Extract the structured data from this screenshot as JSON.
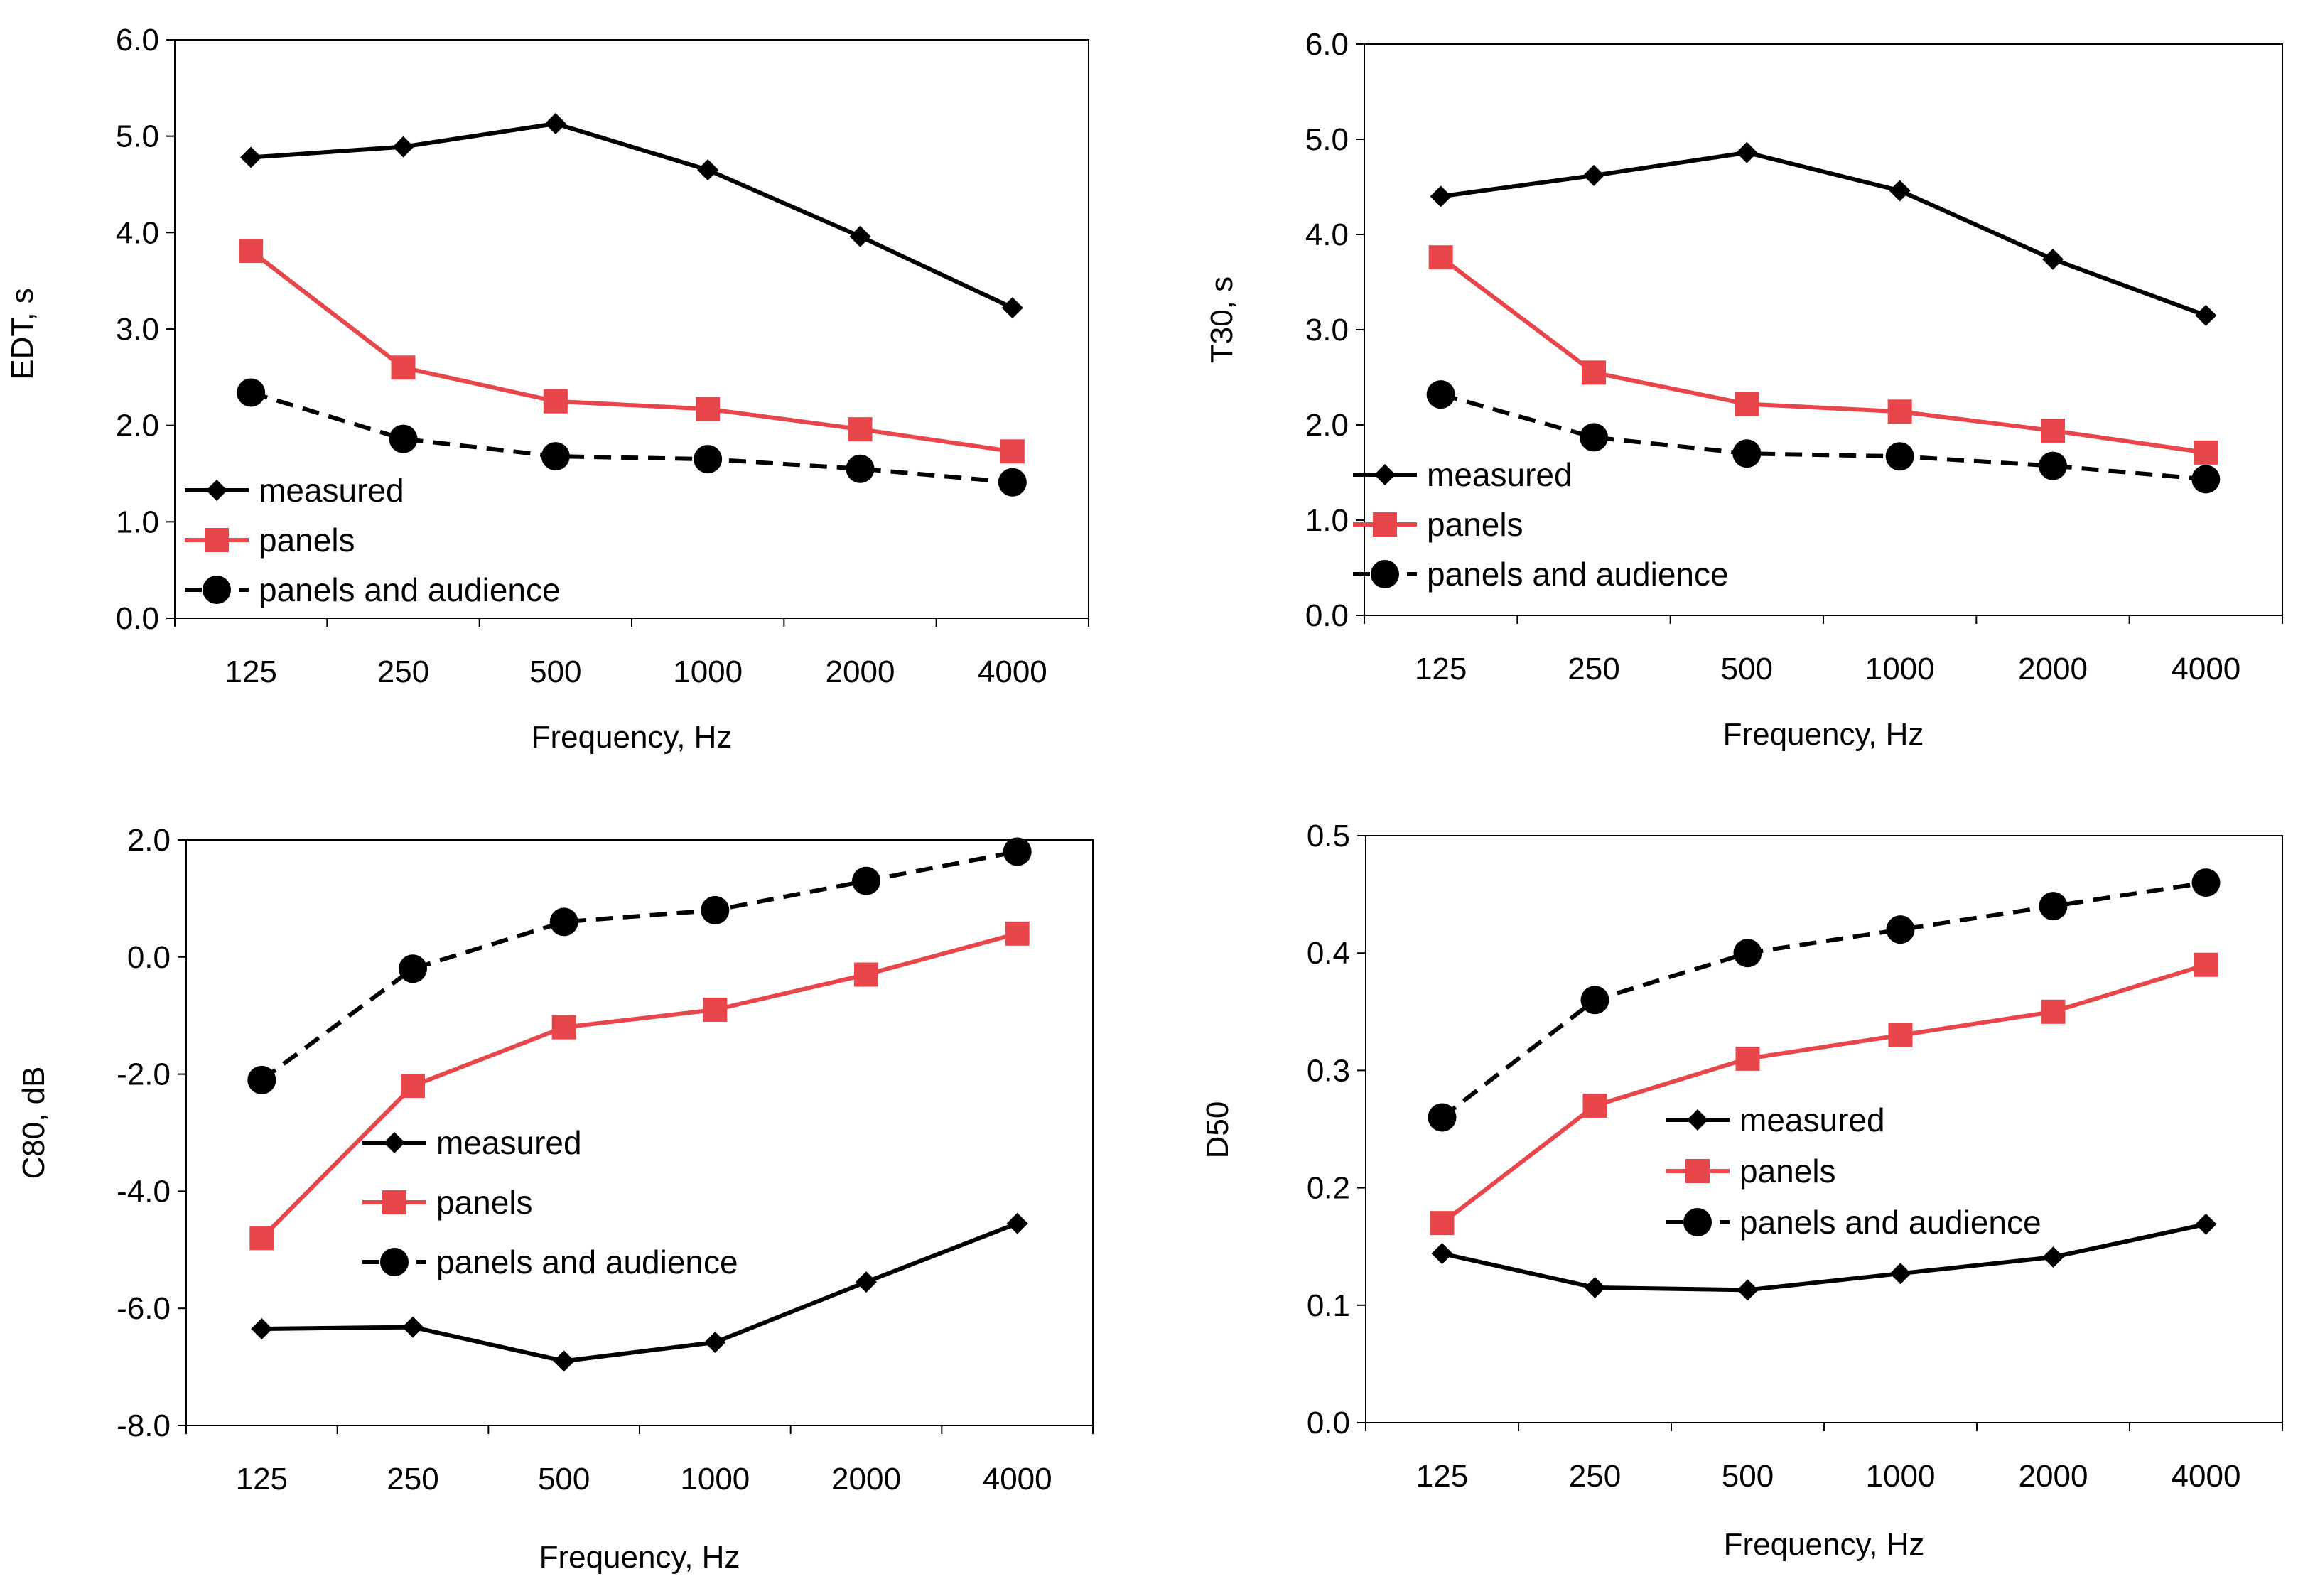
{
  "colors": {
    "measured": "#000000",
    "panels": "#e8464b",
    "panels_and_audience": "#000000",
    "frame": "#000000",
    "background": "#ffffff"
  },
  "chart_data": [
    {
      "type": "line",
      "id": "edt",
      "title": "",
      "xlabel": "Frequency, Hz",
      "ylabel": "EDT, s",
      "categories": [
        "125",
        "250",
        "500",
        "1000",
        "2000",
        "4000"
      ],
      "ylim": [
        0,
        6
      ],
      "yticks": [
        "0.0",
        "1.0",
        "2.0",
        "3.0",
        "4.0",
        "5.0",
        "6.0"
      ],
      "legend_position": "bottom-left",
      "series": [
        {
          "name": "measured",
          "marker": "diamond",
          "dash": "solid",
          "values": [
            4.78,
            4.89,
            5.13,
            4.65,
            3.96,
            3.22
          ]
        },
        {
          "name": "panels",
          "marker": "square",
          "dash": "solid",
          "values": [
            3.81,
            2.6,
            2.25,
            2.17,
            1.96,
            1.73
          ]
        },
        {
          "name": "panels and audience",
          "marker": "circle",
          "dash": "dashed",
          "values": [
            2.34,
            1.86,
            1.68,
            1.65,
            1.55,
            1.41
          ]
        }
      ]
    },
    {
      "type": "line",
      "id": "t30",
      "title": "",
      "xlabel": "Frequency, Hz",
      "ylabel": "T30, s",
      "categories": [
        "125",
        "250",
        "500",
        "1000",
        "2000",
        "4000"
      ],
      "ylim": [
        0,
        6
      ],
      "yticks": [
        "0.0",
        "1.0",
        "2.0",
        "3.0",
        "4.0",
        "5.0",
        "6.0"
      ],
      "legend_position": "bottom-left",
      "series": [
        {
          "name": "measured",
          "marker": "diamond",
          "dash": "solid",
          "values": [
            4.4,
            4.62,
            4.86,
            4.46,
            3.74,
            3.15
          ]
        },
        {
          "name": "panels",
          "marker": "square",
          "dash": "solid",
          "values": [
            3.76,
            2.55,
            2.22,
            2.14,
            1.94,
            1.71
          ]
        },
        {
          "name": "panels and audience",
          "marker": "circle",
          "dash": "dashed",
          "values": [
            2.32,
            1.87,
            1.7,
            1.67,
            1.57,
            1.43
          ]
        }
      ]
    },
    {
      "type": "line",
      "id": "c80",
      "title": "",
      "xlabel": "Frequency, Hz",
      "ylabel": "C80, dB",
      "categories": [
        "125",
        "250",
        "500",
        "1000",
        "2000",
        "4000"
      ],
      "ylim": [
        -8,
        2
      ],
      "yticks": [
        "-8.0",
        "-6.0",
        "-4.0",
        "-2.0",
        "0.0",
        "2.0"
      ],
      "legend_position": "center-right",
      "series": [
        {
          "name": "measured",
          "marker": "diamond",
          "dash": "solid",
          "values": [
            -6.35,
            -6.32,
            -6.9,
            -6.58,
            -5.55,
            -4.55
          ]
        },
        {
          "name": "panels",
          "marker": "square",
          "dash": "solid",
          "values": [
            -4.8,
            -2.2,
            -1.2,
            -0.9,
            -0.3,
            0.4
          ]
        },
        {
          "name": "panels and audience",
          "marker": "circle",
          "dash": "dashed",
          "values": [
            -2.1,
            -0.2,
            0.6,
            0.8,
            1.3,
            1.8
          ]
        }
      ]
    },
    {
      "type": "line",
      "id": "d50",
      "title": "",
      "xlabel": "Frequency, Hz",
      "ylabel": "D50",
      "categories": [
        "125",
        "250",
        "500",
        "1000",
        "2000",
        "4000"
      ],
      "ylim": [
        0,
        0.5
      ],
      "yticks": [
        "0.0",
        "0.1",
        "0.2",
        "0.3",
        "0.4",
        "0.5"
      ],
      "legend_position": "center-right",
      "series": [
        {
          "name": "measured",
          "marker": "diamond",
          "dash": "solid",
          "values": [
            0.144,
            0.115,
            0.113,
            0.127,
            0.141,
            0.169
          ]
        },
        {
          "name": "panels",
          "marker": "square",
          "dash": "solid",
          "values": [
            0.17,
            0.27,
            0.31,
            0.33,
            0.35,
            0.39
          ]
        },
        {
          "name": "panels and audience",
          "marker": "circle",
          "dash": "dashed",
          "values": [
            0.26,
            0.36,
            0.4,
            0.42,
            0.44,
            0.46
          ]
        }
      ]
    }
  ]
}
